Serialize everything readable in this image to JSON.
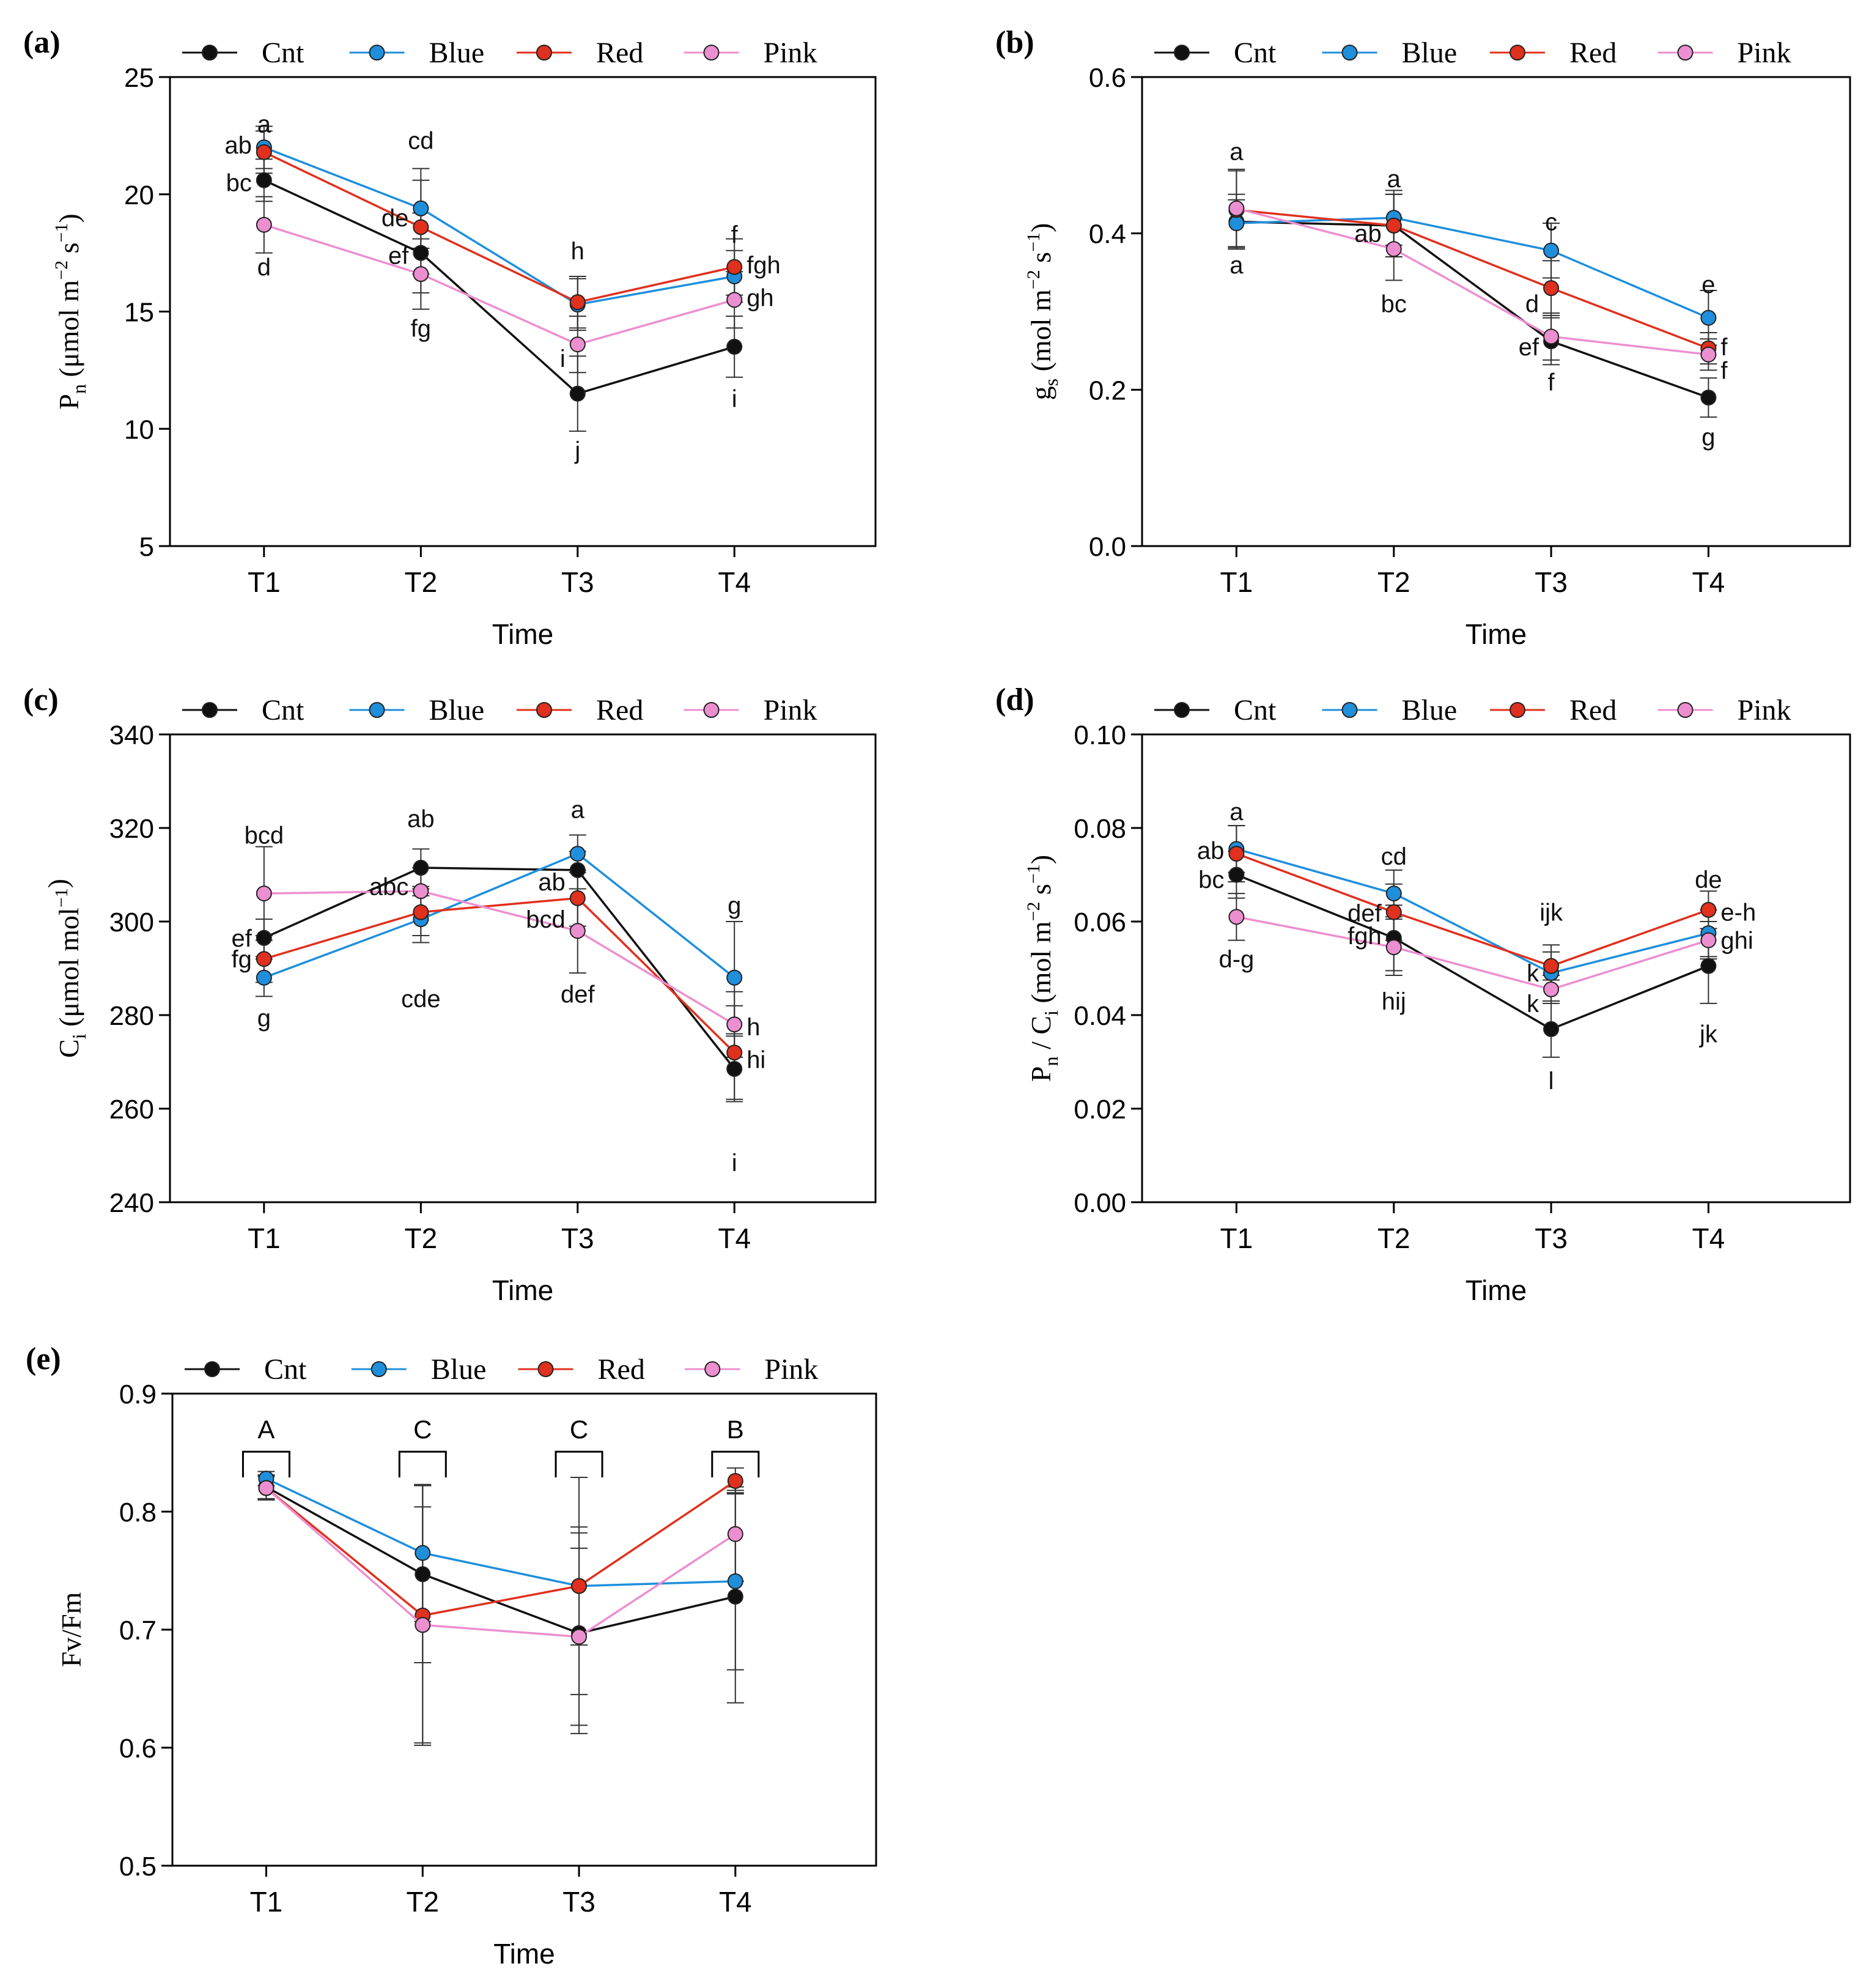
{
  "figure": {
    "colors": {
      "Cnt": "#111111",
      "Blue": "#1f8fdc",
      "Red": "#e0301e",
      "Pink": "#ec8fd0"
    }
  },
  "chart_data": [
    {
      "id": "a",
      "panel_label": "(a)",
      "type": "line",
      "xlabel": "Time",
      "ylabel_main": "P",
      "ylabel_sub": "n",
      "ylabel_unit": " (μmol m",
      "ylabel_sup1": "−2",
      "ylabel_mid": " s",
      "ylabel_sup2": "−1",
      "ylabel_end": ")",
      "categories": [
        "T1",
        "T2",
        "T3",
        "T4"
      ],
      "ylim": [
        5,
        25
      ],
      "yticks": [
        5,
        10,
        15,
        20,
        25
      ],
      "ytick_labels": [
        "5",
        "10",
        "15",
        "20",
        "25"
      ],
      "series": [
        {
          "name": "Cnt",
          "values": [
            20.6,
            17.5,
            11.5,
            13.5
          ],
          "err": [
            0.9,
            1.7,
            1.6,
            1.3
          ]
        },
        {
          "name": "Blue",
          "values": [
            22.0,
            19.4,
            15.3,
            16.5
          ],
          "err": [
            0.9,
            1.7,
            1.1,
            1.1
          ]
        },
        {
          "name": "Red",
          "values": [
            21.8,
            18.6,
            15.4,
            16.9
          ],
          "err": [
            0.9,
            2.0,
            1.1,
            1.2
          ]
        },
        {
          "name": "Pink",
          "values": [
            18.7,
            16.6,
            13.6,
            15.5
          ],
          "err": [
            1.2,
            1.5,
            1.2,
            1.2
          ]
        }
      ],
      "annotations": [
        {
          "text": "a",
          "x": 0,
          "y": 23.0,
          "anchor": "middle"
        },
        {
          "text": "ab",
          "x": 0,
          "y": 22.1,
          "anchor": "end"
        },
        {
          "text": "bc",
          "x": 0,
          "y": 20.5,
          "anchor": "end"
        },
        {
          "text": "d",
          "x": 0,
          "y": 16.9,
          "anchor": "middle"
        },
        {
          "text": "cd",
          "x": 1,
          "y": 22.3,
          "anchor": "middle"
        },
        {
          "text": "de",
          "x": 1,
          "y": 19.0,
          "anchor": "end"
        },
        {
          "text": "ef",
          "x": 1,
          "y": 17.4,
          "anchor": "end"
        },
        {
          "text": "fg",
          "x": 1,
          "y": 14.3,
          "anchor": "middle"
        },
        {
          "text": "h",
          "x": 2,
          "y": 17.6,
          "anchor": "middle"
        },
        {
          "text": "i",
          "x": 2,
          "y": 13.0,
          "anchor": "end"
        },
        {
          "text": "j",
          "x": 2,
          "y": 9.1,
          "anchor": "middle"
        },
        {
          "text": "f",
          "x": 3,
          "y": 18.3,
          "anchor": "middle"
        },
        {
          "text": "fgh",
          "x": 3,
          "y": 17.0,
          "anchor": "start"
        },
        {
          "text": "gh",
          "x": 3,
          "y": 15.6,
          "anchor": "start"
        },
        {
          "text": "i",
          "x": 3,
          "y": 11.3,
          "anchor": "middle"
        }
      ]
    },
    {
      "id": "b",
      "panel_label": "(b)",
      "type": "line",
      "xlabel": "Time",
      "ylabel_main": "g",
      "ylabel_sub": "s",
      "ylabel_unit": " (mol m",
      "ylabel_sup1": "−2",
      "ylabel_mid": " s",
      "ylabel_sup2": "−1",
      "ylabel_end": ")",
      "categories": [
        "T1",
        "T2",
        "T3",
        "T4"
      ],
      "ylim": [
        0,
        0.6
      ],
      "yticks": [
        0,
        0.2,
        0.4,
        0.6
      ],
      "ytick_labels": [
        "0.0",
        "0.2",
        "0.4",
        "0.6"
      ],
      "series": [
        {
          "name": "Cnt",
          "values": [
            0.415,
            0.41,
            0.262,
            0.19
          ],
          "err": [
            0.035,
            0.04,
            0.03,
            0.025
          ]
        },
        {
          "name": "Blue",
          "values": [
            0.413,
            0.42,
            0.378,
            0.292
          ],
          "err": [
            0.03,
            0.035,
            0.035,
            0.035
          ]
        },
        {
          "name": "Red",
          "values": [
            0.43,
            0.41,
            0.33,
            0.253
          ],
          "err": [
            0.05,
            0.04,
            0.035,
            0.02
          ]
        },
        {
          "name": "Pink",
          "values": [
            0.432,
            0.38,
            0.268,
            0.245
          ],
          "err": [
            0.05,
            0.04,
            0.03,
            0.02
          ]
        }
      ],
      "annotations": [
        {
          "text": "a",
          "x": 0,
          "y": 0.505,
          "anchor": "middle"
        },
        {
          "text": "a",
          "x": 0,
          "y": 0.36,
          "anchor": "middle"
        },
        {
          "text": "a",
          "x": 1,
          "y": 0.47,
          "anchor": "middle"
        },
        {
          "text": "ab",
          "x": 1,
          "y": 0.4,
          "anchor": "end"
        },
        {
          "text": "bc",
          "x": 1,
          "y": 0.31,
          "anchor": "middle"
        },
        {
          "text": "c",
          "x": 2,
          "y": 0.415,
          "anchor": "middle"
        },
        {
          "text": "d",
          "x": 2,
          "y": 0.31,
          "anchor": "end"
        },
        {
          "text": "ef",
          "x": 2,
          "y": 0.255,
          "anchor": "end"
        },
        {
          "text": "f",
          "x": 2,
          "y": 0.21,
          "anchor": "middle"
        },
        {
          "text": "e",
          "x": 3,
          "y": 0.335,
          "anchor": "middle"
        },
        {
          "text": "f",
          "x": 3,
          "y": 0.255,
          "anchor": "start"
        },
        {
          "text": "f",
          "x": 3,
          "y": 0.225,
          "anchor": "start"
        },
        {
          "text": "g",
          "x": 3,
          "y": 0.14,
          "anchor": "middle"
        }
      ]
    },
    {
      "id": "c",
      "panel_label": "(c)",
      "type": "line",
      "xlabel": "Time",
      "ylabel_main": "C",
      "ylabel_sub": "i",
      "ylabel_unit": " (μmol mol",
      "ylabel_sup1": "−1",
      "ylabel_mid": "",
      "ylabel_sup2": "",
      "ylabel_end": ")",
      "categories": [
        "T1",
        "T2",
        "T3",
        "T4"
      ],
      "ylim": [
        240,
        340
      ],
      "yticks": [
        240,
        260,
        280,
        300,
        320,
        340
      ],
      "ytick_labels": [
        "240",
        "260",
        "280",
        "300",
        "320",
        "340"
      ],
      "series": [
        {
          "name": "Cnt",
          "values": [
            296.5,
            311.5,
            311.0,
            268.5
          ],
          "err": [
            4,
            4,
            4,
            7
          ]
        },
        {
          "name": "Blue",
          "values": [
            288.0,
            300.5,
            314.5,
            288.0
          ],
          "err": [
            4,
            5,
            4,
            12
          ]
        },
        {
          "name": "Red",
          "values": [
            292.0,
            302.0,
            305.0,
            272.0
          ],
          "err": [
            5,
            5,
            6,
            10
          ]
        },
        {
          "name": "Pink",
          "values": [
            306.0,
            306.5,
            298.0,
            278.0
          ],
          "err": [
            10,
            5,
            9,
            7
          ]
        }
      ],
      "annotations": [
        {
          "text": "bcd",
          "x": 0,
          "y": 318.5,
          "anchor": "middle"
        },
        {
          "text": "ef",
          "x": 0,
          "y": 296.5,
          "anchor": "end"
        },
        {
          "text": "fg",
          "x": 0,
          "y": 292.0,
          "anchor": "end"
        },
        {
          "text": "g",
          "x": 0,
          "y": 279.5,
          "anchor": "middle"
        },
        {
          "text": "ab",
          "x": 1,
          "y": 322.0,
          "anchor": "middle"
        },
        {
          "text": "abc",
          "x": 1,
          "y": 307.5,
          "anchor": "end"
        },
        {
          "text": "cde",
          "x": 1,
          "y": 283.5,
          "anchor": "middle"
        },
        {
          "text": "a",
          "x": 2,
          "y": 324.0,
          "anchor": "middle"
        },
        {
          "text": "ab",
          "x": 2,
          "y": 308.5,
          "anchor": "end"
        },
        {
          "text": "bcd",
          "x": 2,
          "y": 300.5,
          "anchor": "end"
        },
        {
          "text": "def",
          "x": 2,
          "y": 284.5,
          "anchor": "middle"
        },
        {
          "text": "g",
          "x": 3,
          "y": 303.5,
          "anchor": "middle"
        },
        {
          "text": "h",
          "x": 3,
          "y": 277.5,
          "anchor": "start"
        },
        {
          "text": "hi",
          "x": 3,
          "y": 270.5,
          "anchor": "start"
        },
        {
          "text": "i",
          "x": 3,
          "y": 248.5,
          "anchor": "middle"
        }
      ]
    },
    {
      "id": "d",
      "panel_label": "(d)",
      "type": "line",
      "xlabel": "Time",
      "ylabel_main": "P",
      "ylabel_sub": "n",
      "ylabel_unit": " / C",
      "ylabel_sub2": "i",
      "ylabel_tail": " (mol m",
      "ylabel_sup1": "−2",
      "ylabel_mid": " s",
      "ylabel_sup2": "−1",
      "ylabel_end": ")",
      "categories": [
        "T1",
        "T2",
        "T3",
        "T4"
      ],
      "ylim": [
        0,
        0.1
      ],
      "yticks": [
        0,
        0.02,
        0.04,
        0.06,
        0.08,
        0.1
      ],
      "ytick_labels": [
        "0.00",
        "0.02",
        "0.04",
        "0.06",
        "0.08",
        "0.10"
      ],
      "series": [
        {
          "name": "Cnt",
          "values": [
            0.07,
            0.0565,
            0.037,
            0.0505
          ],
          "err": [
            0.005,
            0.007,
            0.006,
            0.008
          ]
        },
        {
          "name": "Blue",
          "values": [
            0.0755,
            0.066,
            0.049,
            0.0575
          ],
          "err": [
            0.005,
            0.005,
            0.006,
            0.005
          ]
        },
        {
          "name": "Red",
          "values": [
            0.0745,
            0.062,
            0.0505,
            0.0625
          ],
          "err": [
            0.006,
            0.006,
            0.003,
            0.004
          ]
        },
        {
          "name": "Pink",
          "values": [
            0.061,
            0.0545,
            0.0455,
            0.056
          ],
          "err": [
            0.005,
            0.006,
            0.003,
            0.004
          ]
        }
      ],
      "annotations": [
        {
          "text": "a",
          "x": 0,
          "y": 0.0835,
          "anchor": "middle"
        },
        {
          "text": "ab",
          "x": 0,
          "y": 0.0752,
          "anchor": "end"
        },
        {
          "text": "bc",
          "x": 0,
          "y": 0.069,
          "anchor": "end"
        },
        {
          "text": "d-g",
          "x": 0,
          "y": 0.052,
          "anchor": "middle"
        },
        {
          "text": "cd",
          "x": 1,
          "y": 0.074,
          "anchor": "middle"
        },
        {
          "text": "def",
          "x": 1,
          "y": 0.0618,
          "anchor": "end"
        },
        {
          "text": "fgh",
          "x": 1,
          "y": 0.057,
          "anchor": "end"
        },
        {
          "text": "hij",
          "x": 1,
          "y": 0.043,
          "anchor": "middle"
        },
        {
          "text": "ijk",
          "x": 2,
          "y": 0.062,
          "anchor": "middle"
        },
        {
          "text": "k",
          "x": 2,
          "y": 0.049,
          "anchor": "end"
        },
        {
          "text": "k",
          "x": 2,
          "y": 0.0425,
          "anchor": "end"
        },
        {
          "text": "l",
          "x": 2,
          "y": 0.026,
          "anchor": "middle"
        },
        {
          "text": "de",
          "x": 3,
          "y": 0.069,
          "anchor": "middle"
        },
        {
          "text": "e-h",
          "x": 3,
          "y": 0.062,
          "anchor": "start"
        },
        {
          "text": "ghi",
          "x": 3,
          "y": 0.056,
          "anchor": "start"
        },
        {
          "text": "jk",
          "x": 3,
          "y": 0.036,
          "anchor": "middle"
        }
      ]
    },
    {
      "id": "e",
      "panel_label": "(e)",
      "type": "line",
      "xlabel": "Time",
      "ylabel_main": "Fv/Fm",
      "categories": [
        "T1",
        "T2",
        "T3",
        "T4"
      ],
      "ylim": [
        0.5,
        0.9
      ],
      "yticks": [
        0.5,
        0.6,
        0.7,
        0.8,
        0.9
      ],
      "ytick_labels": [
        "0.5",
        "0.6",
        "0.7",
        "0.8",
        "0.9"
      ],
      "series": [
        {
          "name": "Cnt",
          "values": [
            0.821,
            0.747,
            0.697,
            0.728
          ],
          "err": [
            0.01,
            0.075,
            0.085,
            0.09
          ]
        },
        {
          "name": "Blue",
          "values": [
            0.828,
            0.765,
            0.737,
            0.741
          ],
          "err": [
            0.006,
            0.058,
            0.092,
            0.075
          ]
        },
        {
          "name": "Red",
          "values": [
            0.82,
            0.712,
            0.737,
            0.826
          ],
          "err": [
            0.01,
            0.11,
            0.05,
            0.011
          ]
        },
        {
          "name": "Pink",
          "values": [
            0.82,
            0.704,
            0.694,
            0.781
          ],
          "err": [
            0.01,
            0.1,
            0.075,
            0.04
          ]
        }
      ],
      "group_letters": [
        "A",
        "C",
        "C",
        "B"
      ]
    }
  ]
}
